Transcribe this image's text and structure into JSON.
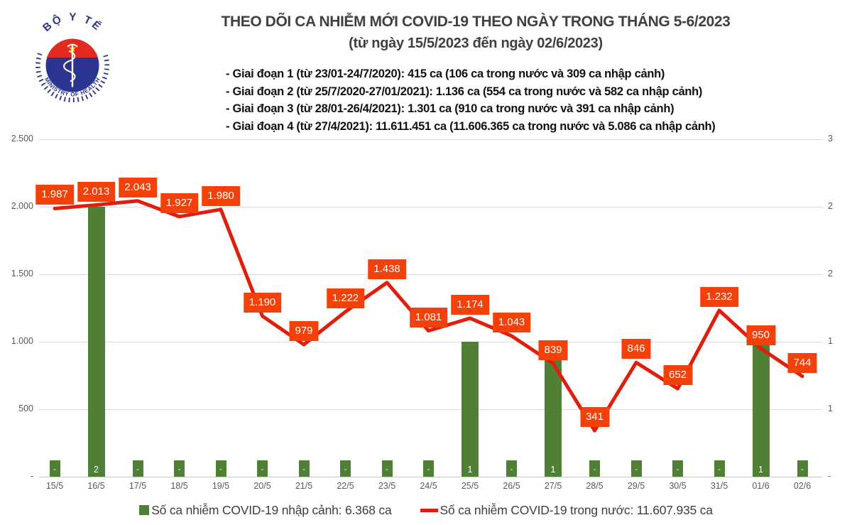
{
  "logo": {
    "top_text": "BỘ Y TẾ",
    "bottom_text": "MINISTRY OF HEALTH"
  },
  "header": {
    "title_line1": "THEO DÕI CA NHIỄM MỚI COVID-19 THEO NGÀY TRONG THÁNG 5-6/2023",
    "title_line2": "(từ ngày 15/5/2023 đến ngày 02/6/2023)",
    "bullets": [
      "- Giai đoạn 1 (từ 23/01-24/7/2020): 415 ca (106 ca trong nước và 309 ca nhập cảnh)",
      "- Giai đoạn 2 (từ 25/7/2020-27/01/2021): 1.136 ca (554 ca trong nước và 582 ca nhập cảnh)",
      "- Giai đoạn 3 (từ 28/01-26/4/2021): 1.301 ca (910 ca trong nước và 391 ca nhập cảnh)",
      "- Giai đoạn 4 (từ 27/4/2021): 11.611.451 ca (11.606.365 ca trong nước và 5.086 ca nhập cảnh)"
    ]
  },
  "chart_data": {
    "type": "combo bar+line",
    "categories": [
      "15/5",
      "16/5",
      "17/5",
      "18/5",
      "19/5",
      "20/5",
      "21/5",
      "22/5",
      "23/5",
      "24/5",
      "25/5",
      "26/5",
      "27/5",
      "28/5",
      "29/5",
      "30/5",
      "31/5",
      "01/6",
      "02/6"
    ],
    "series": [
      {
        "name": "Số ca nhiễm COVID-19 nhập cảnh",
        "type": "bar",
        "axis": "right",
        "values": [
          0,
          2,
          0,
          0,
          0,
          0,
          0,
          0,
          0,
          0,
          1,
          0,
          1,
          0,
          0,
          0,
          0,
          1,
          0
        ],
        "bar_labels": [
          "-",
          "2",
          "-",
          "-",
          "-",
          "-",
          "-",
          "-",
          "-",
          "-",
          "1",
          "-",
          "1",
          "-",
          "-",
          "-",
          "-",
          "1",
          "-"
        ]
      },
      {
        "name": "Số ca nhiễm COVID-19 trong nước",
        "type": "line",
        "axis": "left",
        "values": [
          1987,
          2013,
          2043,
          1927,
          1980,
          1190,
          979,
          1222,
          1438,
          1081,
          1174,
          1043,
          839,
          341,
          846,
          652,
          1232,
          950,
          744
        ],
        "point_labels": [
          "1.987",
          "2.013",
          "2.043",
          "1.927",
          "1.980",
          "1.190",
          "979",
          "1.222",
          "1.438",
          "1.081",
          "1.174",
          "1.043",
          "839",
          "341",
          "846",
          "652",
          "1.232",
          "950",
          "744"
        ]
      }
    ],
    "left_axis": {
      "ticks": [
        "2.500",
        "2.000",
        "1.500",
        "1.000",
        "500",
        "-"
      ],
      "tick_values": [
        2500,
        2000,
        1500,
        1000,
        500,
        0
      ],
      "range": [
        0,
        2500
      ]
    },
    "right_axis": {
      "ticks": [
        "3",
        "2",
        "2",
        "1",
        "1",
        "-"
      ]
    },
    "gridlines": true,
    "legend_position": "bottom"
  },
  "legend": {
    "bar_label": "Số ca nhiễm COVID-19 nhập cảnh: 6.368 ca",
    "line_label": "Số ca nhiễm COVID-19 trong nước: 11.607.935 ca"
  },
  "colors": {
    "bar_green": "#4F8035",
    "line_red": "#E11D0B",
    "label_bg": "#F44109",
    "label_text": "#FFFFFF",
    "axis_text": "#595959",
    "grid": "#DBDBDB",
    "title_text": "#404040",
    "logo_blue": "#2B3490",
    "logo_red": "#E42A1E",
    "star_yellow": "#FFCC00"
  }
}
